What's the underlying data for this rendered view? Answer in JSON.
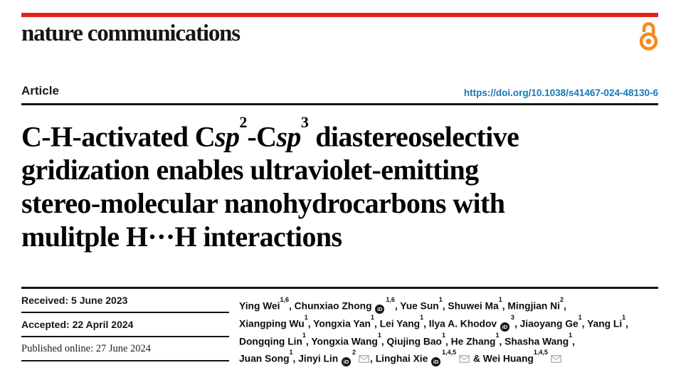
{
  "header": {
    "journal": "nature communications",
    "brand_color": "#e4241c",
    "open_access_icon": "open-access-lock-icon",
    "open_access_color": "#f68b1f"
  },
  "article": {
    "label": "Article",
    "doi": "https://doi.org/10.1038/s41467-024-48130-6",
    "doi_color": "#1577bb"
  },
  "title": {
    "part1": "C-H-activated C",
    "sp": "sp",
    "sup_a": "2",
    "part2": "-C",
    "sup_b": "3",
    "part3": " diastereoselective",
    "line2": "gridization enables ultraviolet-emitting",
    "line3": "stereo-molecular nanohydrocarbons with",
    "line4": "mulitple H···H interactions"
  },
  "dates": {
    "received": "Received: 5 June 2023",
    "accepted": "Accepted: 22 April 2024",
    "published": "Published online: 27 June 2024"
  },
  "icons": {
    "orcid": "orcid-id-icon",
    "mail": "envelope-icon"
  },
  "authors": {
    "lines": [
      [
        {
          "t": "t",
          "v": "Ying Wei"
        },
        {
          "t": "s",
          "v": "1,6"
        },
        {
          "t": "t",
          "v": ", Chunxiao Zhong "
        },
        {
          "t": "o"
        },
        {
          "t": "s",
          "v": "1,6"
        },
        {
          "t": "t",
          "v": ", Yue Sun"
        },
        {
          "t": "s",
          "v": "1"
        },
        {
          "t": "t",
          "v": ", Shuwei Ma"
        },
        {
          "t": "s",
          "v": "1"
        },
        {
          "t": "t",
          "v": ", Mingjian Ni"
        },
        {
          "t": "s",
          "v": "2"
        },
        {
          "t": "t",
          "v": ","
        }
      ],
      [
        {
          "t": "t",
          "v": "Xiangping Wu"
        },
        {
          "t": "s",
          "v": "1"
        },
        {
          "t": "t",
          "v": ", Yongxia Yan"
        },
        {
          "t": "s",
          "v": "1"
        },
        {
          "t": "t",
          "v": ", Lei Yang"
        },
        {
          "t": "s",
          "v": "1"
        },
        {
          "t": "t",
          "v": ", Ilya A. Khodov "
        },
        {
          "t": "o"
        },
        {
          "t": "s",
          "v": "3"
        },
        {
          "t": "t",
          "v": ", Jiaoyang Ge"
        },
        {
          "t": "s",
          "v": "1"
        },
        {
          "t": "t",
          "v": ", Yang Li"
        },
        {
          "t": "s",
          "v": "1"
        },
        {
          "t": "t",
          "v": ","
        }
      ],
      [
        {
          "t": "t",
          "v": "Dongqing Lin"
        },
        {
          "t": "s",
          "v": "1"
        },
        {
          "t": "t",
          "v": ", Yongxia Wang"
        },
        {
          "t": "s",
          "v": "1"
        },
        {
          "t": "t",
          "v": ", Qiujing Bao"
        },
        {
          "t": "s",
          "v": "1"
        },
        {
          "t": "t",
          "v": ", He Zhang"
        },
        {
          "t": "s",
          "v": "1"
        },
        {
          "t": "t",
          "v": ", Shasha Wang"
        },
        {
          "t": "s",
          "v": "1"
        },
        {
          "t": "t",
          "v": ","
        }
      ],
      [
        {
          "t": "t",
          "v": "Juan Song"
        },
        {
          "t": "s",
          "v": "1"
        },
        {
          "t": "t",
          "v": ", Jinyi Lin "
        },
        {
          "t": "o"
        },
        {
          "t": "s",
          "v": "2"
        },
        {
          "t": "m"
        },
        {
          "t": "t",
          "v": ", Linghai Xie "
        },
        {
          "t": "o"
        },
        {
          "t": "s",
          "v": "1,4,5"
        },
        {
          "t": "m"
        },
        {
          "t": "t",
          "v": " & Wei Huang"
        },
        {
          "t": "s",
          "v": "1,4,5"
        },
        {
          "t": "m"
        }
      ]
    ]
  }
}
